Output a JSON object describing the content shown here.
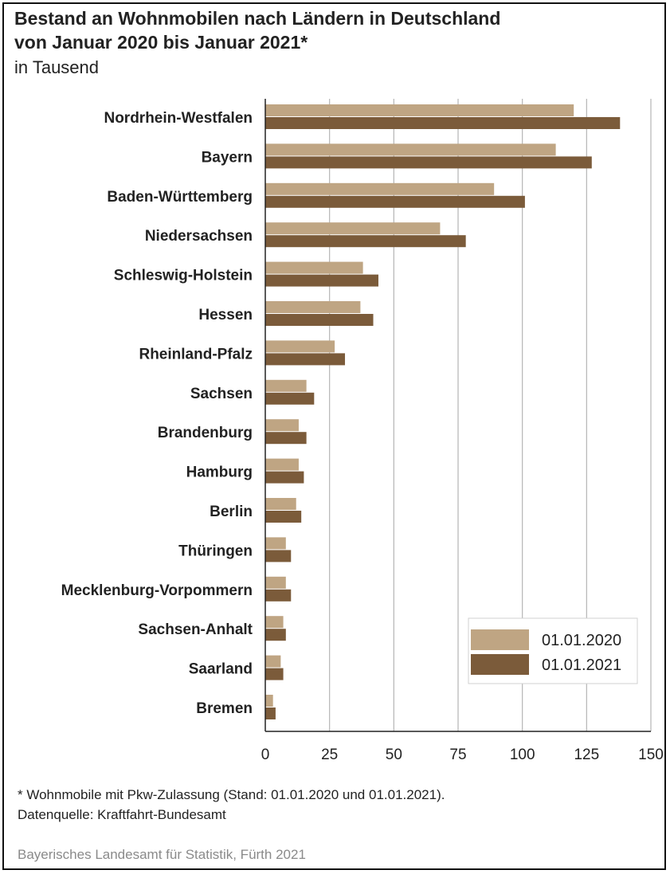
{
  "header": {
    "title_line1": "Bestand an Wohnmobilen nach Ländern in Deutschland",
    "title_line2": "von Januar 2020 bis Januar 2021*",
    "subtitle": "in Tausend"
  },
  "footer": {
    "footnote": "*  Wohnmobile mit Pkw-Zulassung (Stand: 01.01.2020 und 01.01.2021).",
    "datasource": "Datenquelle: Kraftfahrt-Bundesamt",
    "publisher": "Bayerisches Landesamt für Statistik, Fürth 2021"
  },
  "chart_data": {
    "type": "bar",
    "orientation": "horizontal",
    "categories": [
      "Nordrhein-Westfalen",
      "Bayern",
      "Baden-Württemberg",
      "Niedersachsen",
      "Schleswig-Holstein",
      "Hessen",
      "Rheinland-Pfalz",
      "Sachsen",
      "Brandenburg",
      "Hamburg",
      "Berlin",
      "Thüringen",
      "Mecklenburg-Vorpommern",
      "Sachsen-Anhalt",
      "Saarland",
      "Bremen"
    ],
    "series": [
      {
        "name": "01.01.2020",
        "color": "#bfa583",
        "values": [
          120,
          113,
          89,
          68,
          38,
          37,
          27,
          16,
          13,
          13,
          12,
          8,
          8,
          7,
          6,
          3
        ]
      },
      {
        "name": "01.01.2021",
        "color": "#7b5b3a",
        "values": [
          138,
          127,
          101,
          78,
          44,
          42,
          31,
          19,
          16,
          15,
          14,
          10,
          10,
          8,
          7,
          4
        ]
      }
    ],
    "xlim": [
      0,
      150
    ],
    "xticks": [
      "0",
      "25",
      "50",
      "75",
      "100",
      "125",
      "150"
    ],
    "grid": true,
    "legend_position": "bottom-right",
    "title": "",
    "xlabel": "",
    "ylabel": ""
  }
}
